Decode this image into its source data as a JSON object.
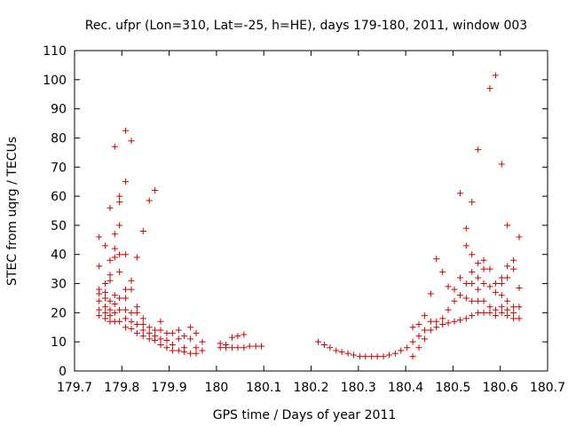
{
  "chart_data": {
    "type": "scatter",
    "title": "Rec. ufpr (Lon=310, Lat=-25, h=HE), days 179-180, 2011, window 003",
    "xlabel": "GPS time / Days of year 2011",
    "ylabel": "STEC from uqrg / TECUs",
    "xlim": [
      179.7,
      180.7
    ],
    "ylim": [
      0,
      110
    ],
    "xticks": [
      "179.7",
      "179.8",
      "179.9",
      "180",
      "180.1",
      "180.2",
      "180.3",
      "180.4",
      "180.5",
      "180.6",
      "180.7"
    ],
    "yticks": [
      "0",
      "10",
      "20",
      "30",
      "40",
      "50",
      "60",
      "70",
      "80",
      "90",
      "100",
      "110"
    ],
    "grid": false,
    "marker": "plus",
    "marker_color": "#cc0000",
    "points": [
      [
        179.752,
        46
      ],
      [
        179.752,
        36
      ],
      [
        179.752,
        28
      ],
      [
        179.752,
        26.5
      ],
      [
        179.752,
        24
      ],
      [
        179.752,
        21
      ],
      [
        179.752,
        19
      ],
      [
        179.765,
        43
      ],
      [
        179.765,
        30
      ],
      [
        179.765,
        27
      ],
      [
        179.765,
        25
      ],
      [
        179.765,
        22
      ],
      [
        179.765,
        20
      ],
      [
        179.765,
        18
      ],
      [
        179.775,
        56
      ],
      [
        179.775,
        38
      ],
      [
        179.775,
        33
      ],
      [
        179.775,
        31
      ],
      [
        179.775,
        24
      ],
      [
        179.775,
        21
      ],
      [
        179.775,
        19
      ],
      [
        179.775,
        17
      ],
      [
        179.785,
        77
      ],
      [
        179.785,
        47
      ],
      [
        179.785,
        42
      ],
      [
        179.785,
        39
      ],
      [
        179.785,
        26
      ],
      [
        179.785,
        23
      ],
      [
        179.785,
        20
      ],
      [
        179.785,
        17
      ],
      [
        179.795,
        60
      ],
      [
        179.795,
        58
      ],
      [
        179.795,
        50
      ],
      [
        179.795,
        40
      ],
      [
        179.795,
        34
      ],
      [
        179.795,
        25
      ],
      [
        179.795,
        21
      ],
      [
        179.795,
        17
      ],
      [
        179.808,
        82.5
      ],
      [
        179.808,
        65
      ],
      [
        179.808,
        40
      ],
      [
        179.808,
        28
      ],
      [
        179.808,
        25
      ],
      [
        179.808,
        21
      ],
      [
        179.808,
        18
      ],
      [
        179.808,
        15
      ],
      [
        179.82,
        79
      ],
      [
        179.82,
        31
      ],
      [
        179.82,
        28
      ],
      [
        179.82,
        20
      ],
      [
        179.82,
        17
      ],
      [
        179.82,
        14.5
      ],
      [
        179.832,
        39
      ],
      [
        179.832,
        22
      ],
      [
        179.832,
        20
      ],
      [
        179.832,
        16
      ],
      [
        179.832,
        13
      ],
      [
        179.845,
        48
      ],
      [
        179.845,
        18
      ],
      [
        179.845,
        16
      ],
      [
        179.845,
        14
      ],
      [
        179.845,
        12
      ],
      [
        179.858,
        58.5
      ],
      [
        179.858,
        15
      ],
      [
        179.858,
        13
      ],
      [
        179.858,
        11
      ],
      [
        179.87,
        62
      ],
      [
        179.87,
        14
      ],
      [
        179.87,
        12
      ],
      [
        179.87,
        10.5
      ],
      [
        179.882,
        17
      ],
      [
        179.882,
        14
      ],
      [
        179.882,
        11
      ],
      [
        179.882,
        9
      ],
      [
        179.895,
        13
      ],
      [
        179.895,
        10.5
      ],
      [
        179.895,
        8
      ],
      [
        179.907,
        13
      ],
      [
        179.907,
        9
      ],
      [
        179.907,
        7
      ],
      [
        179.92,
        14
      ],
      [
        179.92,
        11
      ],
      [
        179.92,
        7
      ],
      [
        179.932,
        12
      ],
      [
        179.932,
        8
      ],
      [
        179.932,
        6.5
      ],
      [
        179.945,
        15
      ],
      [
        179.945,
        11
      ],
      [
        179.945,
        6
      ],
      [
        179.957,
        13
      ],
      [
        179.957,
        8
      ],
      [
        179.957,
        6
      ],
      [
        179.97,
        10
      ],
      [
        179.97,
        7
      ],
      [
        180.008,
        9.5
      ],
      [
        180.008,
        8
      ],
      [
        180.02,
        9
      ],
      [
        180.02,
        8
      ],
      [
        180.033,
        11.5
      ],
      [
        180.033,
        8
      ],
      [
        180.045,
        12
      ],
      [
        180.045,
        8
      ],
      [
        180.058,
        12.5
      ],
      [
        180.058,
        8
      ],
      [
        180.07,
        8.5
      ],
      [
        180.083,
        8.5
      ],
      [
        180.095,
        8.5
      ],
      [
        180.215,
        10
      ],
      [
        180.228,
        9
      ],
      [
        180.24,
        8
      ],
      [
        180.253,
        7
      ],
      [
        180.265,
        6.5
      ],
      [
        180.278,
        6
      ],
      [
        180.29,
        5.5
      ],
      [
        180.303,
        5
      ],
      [
        180.315,
        5
      ],
      [
        180.328,
        5
      ],
      [
        180.34,
        5
      ],
      [
        180.353,
        5
      ],
      [
        180.365,
        5.5
      ],
      [
        180.378,
        6
      ],
      [
        180.39,
        7
      ],
      [
        180.403,
        8
      ],
      [
        180.415,
        15
      ],
      [
        180.415,
        10
      ],
      [
        180.415,
        5
      ],
      [
        180.428,
        16
      ],
      [
        180.428,
        12
      ],
      [
        180.428,
        8
      ],
      [
        180.44,
        19
      ],
      [
        180.44,
        14
      ],
      [
        180.44,
        11
      ],
      [
        180.453,
        26.5
      ],
      [
        180.453,
        17
      ],
      [
        180.453,
        14
      ],
      [
        180.465,
        38.5
      ],
      [
        180.465,
        17
      ],
      [
        180.465,
        15
      ],
      [
        180.478,
        34
      ],
      [
        180.478,
        18
      ],
      [
        180.478,
        16
      ],
      [
        180.49,
        29
      ],
      [
        180.49,
        21
      ],
      [
        180.49,
        16.5
      ],
      [
        180.503,
        28
      ],
      [
        180.503,
        24
      ],
      [
        180.503,
        17
      ],
      [
        180.515,
        61
      ],
      [
        180.515,
        32
      ],
      [
        180.515,
        26
      ],
      [
        180.515,
        17.5
      ],
      [
        180.528,
        49
      ],
      [
        180.528,
        43
      ],
      [
        180.528,
        30
      ],
      [
        180.528,
        25
      ],
      [
        180.528,
        18
      ],
      [
        180.54,
        58
      ],
      [
        180.54,
        40
      ],
      [
        180.54,
        34
      ],
      [
        180.54,
        30
      ],
      [
        180.54,
        24
      ],
      [
        180.54,
        19
      ],
      [
        180.553,
        76
      ],
      [
        180.553,
        37
      ],
      [
        180.553,
        32
      ],
      [
        180.553,
        28
      ],
      [
        180.553,
        24
      ],
      [
        180.553,
        20
      ],
      [
        180.565,
        38
      ],
      [
        180.565,
        35
      ],
      [
        180.565,
        30
      ],
      [
        180.565,
        24
      ],
      [
        180.565,
        20
      ],
      [
        180.578,
        97
      ],
      [
        180.578,
        35
      ],
      [
        180.578,
        29
      ],
      [
        180.578,
        22
      ],
      [
        180.578,
        20
      ],
      [
        180.59,
        101.5
      ],
      [
        180.59,
        30
      ],
      [
        180.59,
        27
      ],
      [
        180.59,
        21
      ],
      [
        180.59,
        19
      ],
      [
        180.603,
        71
      ],
      [
        180.603,
        32
      ],
      [
        180.603,
        30
      ],
      [
        180.603,
        26
      ],
      [
        180.603,
        22
      ],
      [
        180.603,
        20
      ],
      [
        180.615,
        50
      ],
      [
        180.615,
        36
      ],
      [
        180.615,
        32
      ],
      [
        180.615,
        24
      ],
      [
        180.615,
        21
      ],
      [
        180.615,
        19
      ],
      [
        180.628,
        38
      ],
      [
        180.628,
        35
      ],
      [
        180.628,
        22
      ],
      [
        180.628,
        20
      ],
      [
        180.628,
        18
      ],
      [
        180.64,
        46
      ],
      [
        180.64,
        28.5
      ],
      [
        180.64,
        22
      ],
      [
        180.64,
        18
      ]
    ]
  }
}
